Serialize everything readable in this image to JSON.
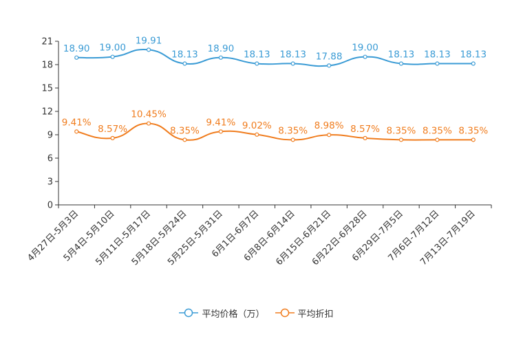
{
  "chart_data": {
    "type": "line",
    "categories": [
      "4月27日-5月3日",
      "5月4日-5月10日",
      "5月11日-5月17日",
      "5月18日-5月24日",
      "5月25日-5月31日",
      "6月1日-6月7日",
      "6月8日-6月14日",
      "6月15日-6月21日",
      "6月22日-6月28日",
      "6月29日-7月5日",
      "7月6日-7月12日",
      "7月13日-7月19日"
    ],
    "ylim": [
      0,
      21
    ],
    "yticks": [
      0,
      3,
      6,
      9,
      12,
      15,
      18,
      21
    ],
    "series": [
      {
        "name": "平均价格（万）",
        "color": "#3a9bd5",
        "values": [
          18.9,
          19.0,
          19.91,
          18.13,
          18.9,
          18.13,
          18.13,
          17.88,
          19.0,
          18.13,
          18.13,
          18.13
        ],
        "labels": [
          "18.90",
          "19.00",
          "19.91",
          "18.13",
          "18.90",
          "18.13",
          "18.13",
          "17.88",
          "19.00",
          "18.13",
          "18.13",
          "18.13"
        ]
      },
      {
        "name": "平均折扣",
        "color": "#f07c1d",
        "values": [
          9.41,
          8.57,
          10.45,
          8.35,
          9.41,
          9.02,
          8.35,
          8.98,
          8.57,
          8.35,
          8.35,
          8.35
        ],
        "labels": [
          "9.41%",
          "8.57%",
          "10.45%",
          "8.35%",
          "9.41%",
          "9.02%",
          "8.35%",
          "8.98%",
          "8.57%",
          "8.35%",
          "8.35%",
          "8.35%"
        ]
      }
    ],
    "legend": [
      "平均价格（万）",
      "平均折扣"
    ]
  }
}
